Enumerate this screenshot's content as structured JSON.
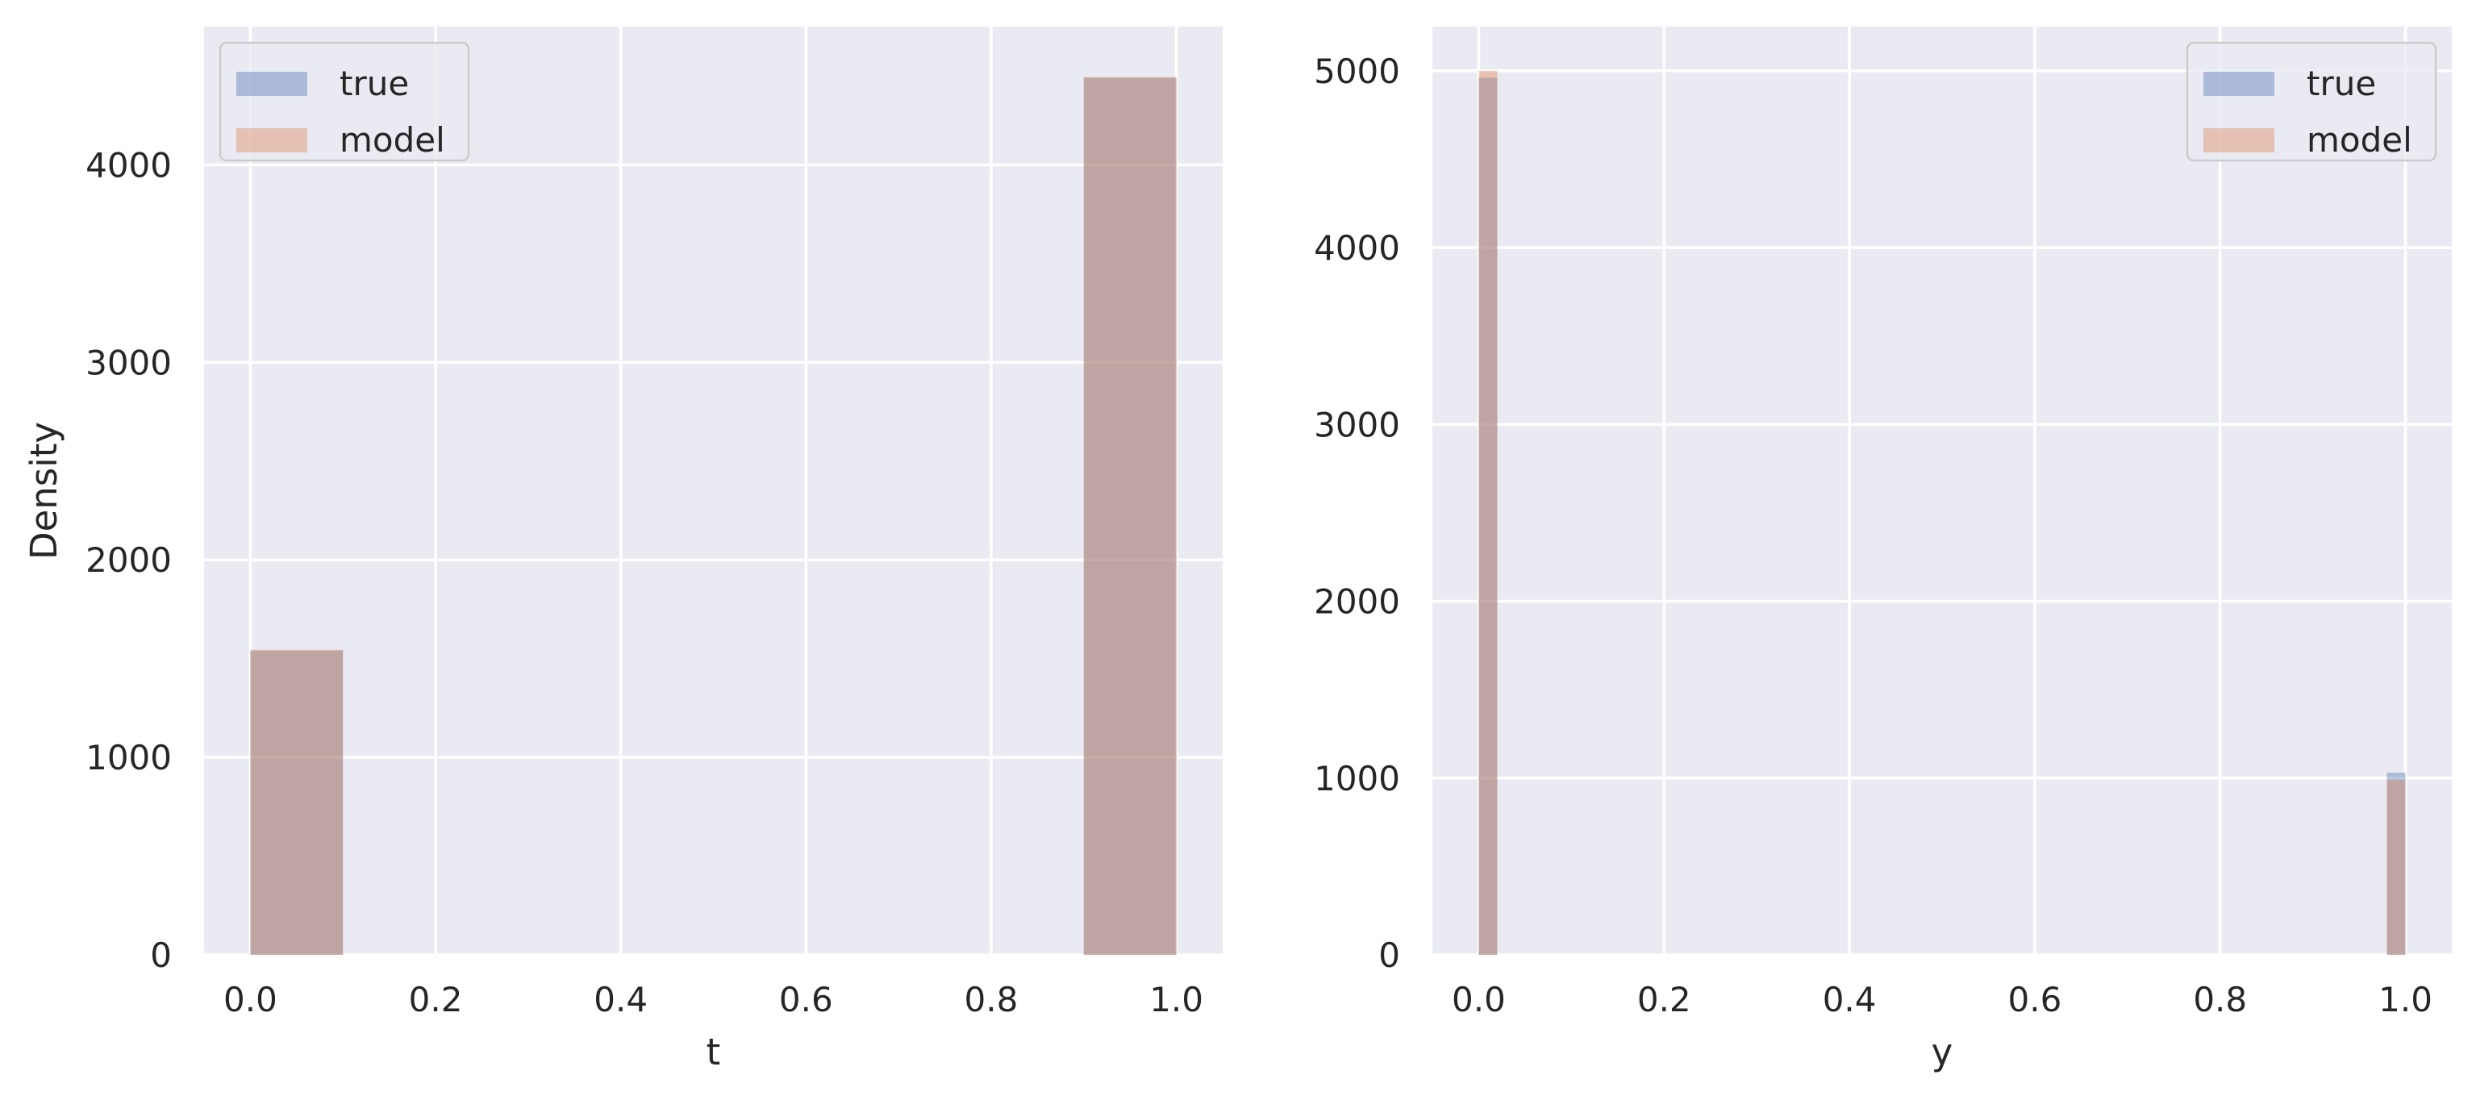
{
  "chart_data": [
    {
      "type": "bar",
      "subtype": "histogram-overlay",
      "xlabel": "t",
      "ylabel": "Density",
      "xlim": [
        -0.05,
        1.05
      ],
      "ylim": [
        0,
        4700
      ],
      "xticks": [
        0.0,
        0.2,
        0.4,
        0.6,
        0.8,
        1.0
      ],
      "xtick_labels": [
        "0.0",
        "0.2",
        "0.4",
        "0.6",
        "0.8",
        "1.0"
      ],
      "yticks": [
        0,
        1000,
        2000,
        3000,
        4000
      ],
      "ytick_labels": [
        "0",
        "1000",
        "2000",
        "3000",
        "4000"
      ],
      "grid": true,
      "legend_position": "upper left",
      "series": [
        {
          "name": "true",
          "color": "#4c72b0",
          "bins": [
            {
              "x0": 0.0,
              "x1": 0.1,
              "value": 1540
            },
            {
              "x0": 0.9,
              "x1": 1.0,
              "value": 4440
            }
          ]
        },
        {
          "name": "model",
          "color": "#dd8452",
          "bins": [
            {
              "x0": 0.0,
              "x1": 0.1,
              "value": 1545
            },
            {
              "x0": 0.9,
              "x1": 1.0,
              "value": 4445
            }
          ]
        }
      ]
    },
    {
      "type": "bar",
      "subtype": "histogram-overlay",
      "xlabel": "y",
      "ylabel": "",
      "xlim": [
        -0.05,
        1.05
      ],
      "ylim": [
        0,
        5250
      ],
      "xticks": [
        0.0,
        0.2,
        0.4,
        0.6,
        0.8,
        1.0
      ],
      "xtick_labels": [
        "0.0",
        "0.2",
        "0.4",
        "0.6",
        "0.8",
        "1.0"
      ],
      "yticks": [
        0,
        1000,
        2000,
        3000,
        4000,
        5000
      ],
      "ytick_labels": [
        "0",
        "1000",
        "2000",
        "3000",
        "4000",
        "5000"
      ],
      "grid": true,
      "legend_position": "upper right",
      "series": [
        {
          "name": "true",
          "color": "#4c72b0",
          "bins": [
            {
              "x0": 0.0,
              "x1": 0.02,
              "value": 4960
            },
            {
              "x0": 0.98,
              "x1": 1.0,
              "value": 1030
            }
          ]
        },
        {
          "name": "model",
          "color": "#dd8452",
          "bins": [
            {
              "x0": 0.0,
              "x1": 0.02,
              "value": 5000
            },
            {
              "x0": 0.98,
              "x1": 1.0,
              "value": 990
            }
          ]
        }
      ]
    }
  ]
}
